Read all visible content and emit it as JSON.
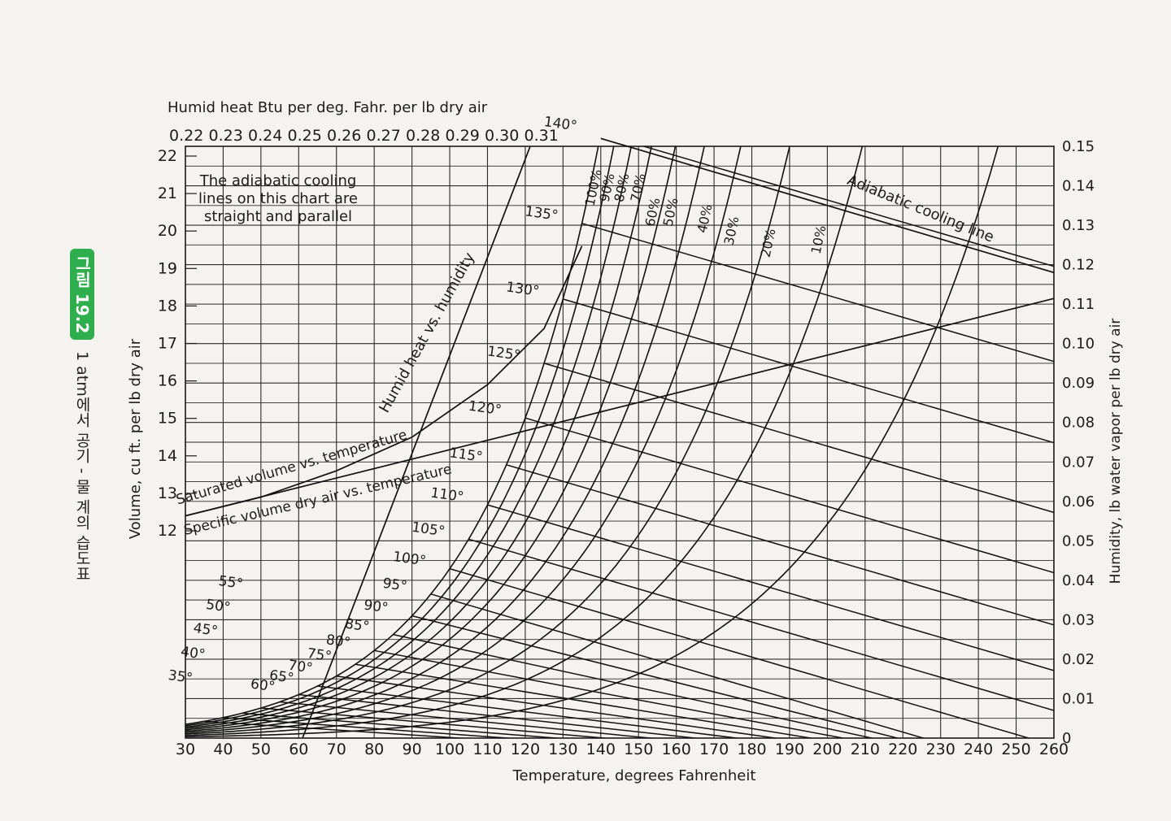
{
  "figure": {
    "badge": "그림 19.2",
    "caption": "1 atm에서 공기 - 물 계의 습도표"
  },
  "chart_data": {
    "type": "line",
    "title": "",
    "top_axis_label": "Humid heat Btu per deg. Fahr. per lb dry air",
    "top_ticks": [
      "0.22",
      "0.23",
      "0.24",
      "0.25",
      "0.26",
      "0.27",
      "0.28",
      "0.29",
      "0.30",
      "0.31"
    ],
    "xlabel": "Temperature, degrees Fahrenheit",
    "xlim": [
      30,
      260
    ],
    "xticks": [
      30,
      40,
      50,
      60,
      70,
      80,
      90,
      100,
      110,
      120,
      130,
      140,
      150,
      160,
      170,
      180,
      190,
      200,
      210,
      220,
      230,
      240,
      250,
      260
    ],
    "ylabel_left": "Volume, cu ft. per lb dry air",
    "ylim_left": [
      12,
      22
    ],
    "yticks_left": [
      12,
      13,
      14,
      15,
      16,
      17,
      18,
      19,
      20,
      21,
      22
    ],
    "ylabel_right": "Humidity, lb water vapor per lb dry air",
    "ylim_right": [
      0,
      0.15
    ],
    "yticks_right": [
      "0",
      "0.01",
      "0.02",
      "0.03",
      "0.04",
      "0.05",
      "0.06",
      "0.07",
      "0.08",
      "0.09",
      "0.10",
      "0.11",
      "0.12",
      "0.13",
      "0.14",
      "0.15"
    ],
    "grid": true,
    "annotations": {
      "adiabatic_note": [
        "The adiabatic cooling",
        "lines on this chart are",
        "straight and parallel"
      ],
      "adiabatic_line": "Adiabatic cooling line",
      "humid_heat_line": "Humid heat vs. humidity",
      "saturated_volume": "Saturated volume vs. temperature",
      "specific_volume": "Specific volume dry air vs. temperature"
    },
    "relative_humidity_curves": [
      {
        "label": "100%",
        "rh": 1.0
      },
      {
        "label": "90%",
        "rh": 0.9
      },
      {
        "label": "80%",
        "rh": 0.8
      },
      {
        "label": "70%",
        "rh": 0.7
      },
      {
        "label": "60%",
        "rh": 0.6
      },
      {
        "label": "50%",
        "rh": 0.5
      },
      {
        "label": "40%",
        "rh": 0.4
      },
      {
        "label": "30%",
        "rh": 0.3
      },
      {
        "label": "20%",
        "rh": 0.2
      },
      {
        "label": "10%",
        "rh": 0.1
      }
    ],
    "adiabatic_saturation_temps": [
      {
        "label": "35°",
        "t": 35
      },
      {
        "label": "40°",
        "t": 40
      },
      {
        "label": "45°",
        "t": 45
      },
      {
        "label": "50°",
        "t": 50
      },
      {
        "label": "55°",
        "t": 55
      },
      {
        "label": "60°",
        "t": 60
      },
      {
        "label": "65°",
        "t": 65
      },
      {
        "label": "70°",
        "t": 70
      },
      {
        "label": "75°",
        "t": 75
      },
      {
        "label": "80°",
        "t": 80
      },
      {
        "label": "85°",
        "t": 85
      },
      {
        "label": "90°",
        "t": 90
      },
      {
        "label": "95°",
        "t": 95
      },
      {
        "label": "100°",
        "t": 100
      },
      {
        "label": "105°",
        "t": 105
      },
      {
        "label": "110°",
        "t": 110
      },
      {
        "label": "115°",
        "t": 115
      },
      {
        "label": "120°",
        "t": 120
      },
      {
        "label": "125°",
        "t": 125
      },
      {
        "label": "130°",
        "t": 130
      },
      {
        "label": "135°",
        "t": 135
      },
      {
        "label": "140°",
        "t": 140
      }
    ],
    "series": [
      {
        "name": "Humid heat vs. humidity",
        "x": [
          0.24,
          0.31
        ],
        "y": [
          0,
          0.155
        ]
      },
      {
        "name": "Saturated volume vs. temperature",
        "x": [
          30,
          50,
          70,
          90,
          110,
          125,
          135
        ],
        "y": [
          12.4,
          12.9,
          13.6,
          14.5,
          15.9,
          17.4,
          19.6
        ]
      },
      {
        "name": "Specific volume dry air vs. temperature",
        "x": [
          30,
          260
        ],
        "y": [
          12.4,
          18.2
        ]
      },
      {
        "name": "Adiabatic cooling line",
        "x": [
          140,
          260
        ],
        "y": [
          0.152,
          0.118
        ]
      }
    ]
  }
}
